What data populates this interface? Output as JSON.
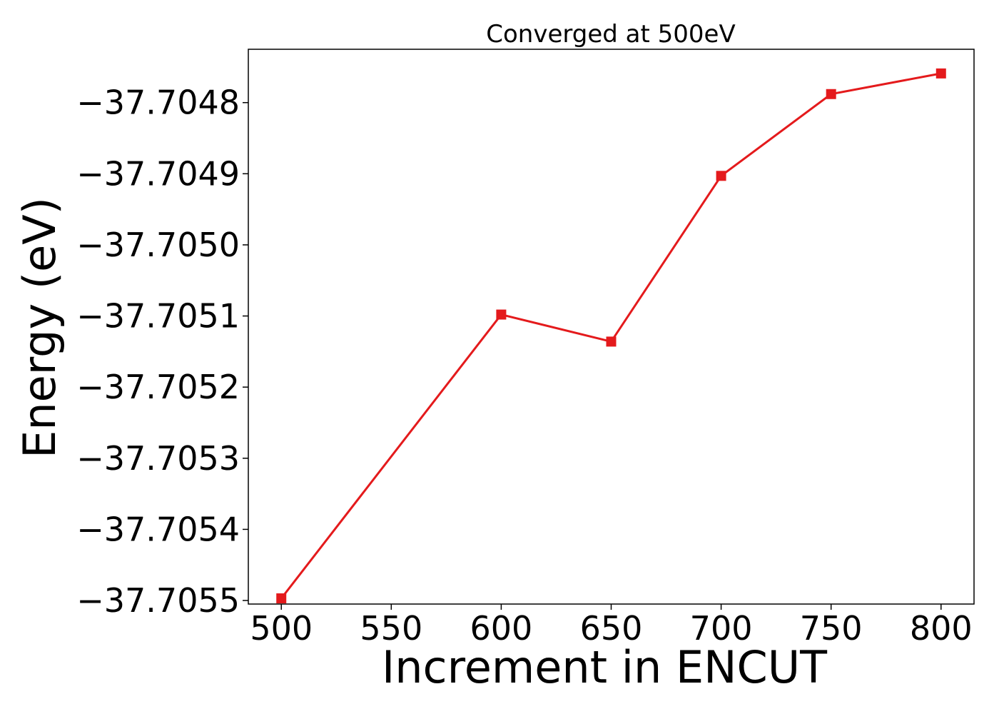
{
  "chart_data": {
    "type": "line",
    "title": "Converged at 500eV",
    "xlabel": "Increment in ENCUT",
    "ylabel": "Energy (eV)",
    "x_ticks": [
      500,
      550,
      600,
      650,
      700,
      750,
      800
    ],
    "y_ticks": [
      -37.7055,
      -37.7054,
      -37.7053,
      -37.7052,
      -37.7051,
      -37.705,
      -37.7049,
      -37.7048
    ],
    "y_tick_labels": [
      "−37.7055",
      "−37.7054",
      "−37.7053",
      "−37.7052",
      "−37.7051",
      "−37.7050",
      "−37.7049",
      "−37.7048"
    ],
    "xlim": [
      485,
      815
    ],
    "ylim": [
      -37.705505,
      -37.704725
    ],
    "grid": false,
    "series": [
      {
        "color": "#e41a1c",
        "marker": "square",
        "x": [
          500,
          600,
          650,
          700,
          750,
          800
        ],
        "y": [
          -37.705497,
          -37.705098,
          -37.705136,
          -37.704903,
          -37.704788,
          -37.704759
        ]
      }
    ]
  }
}
